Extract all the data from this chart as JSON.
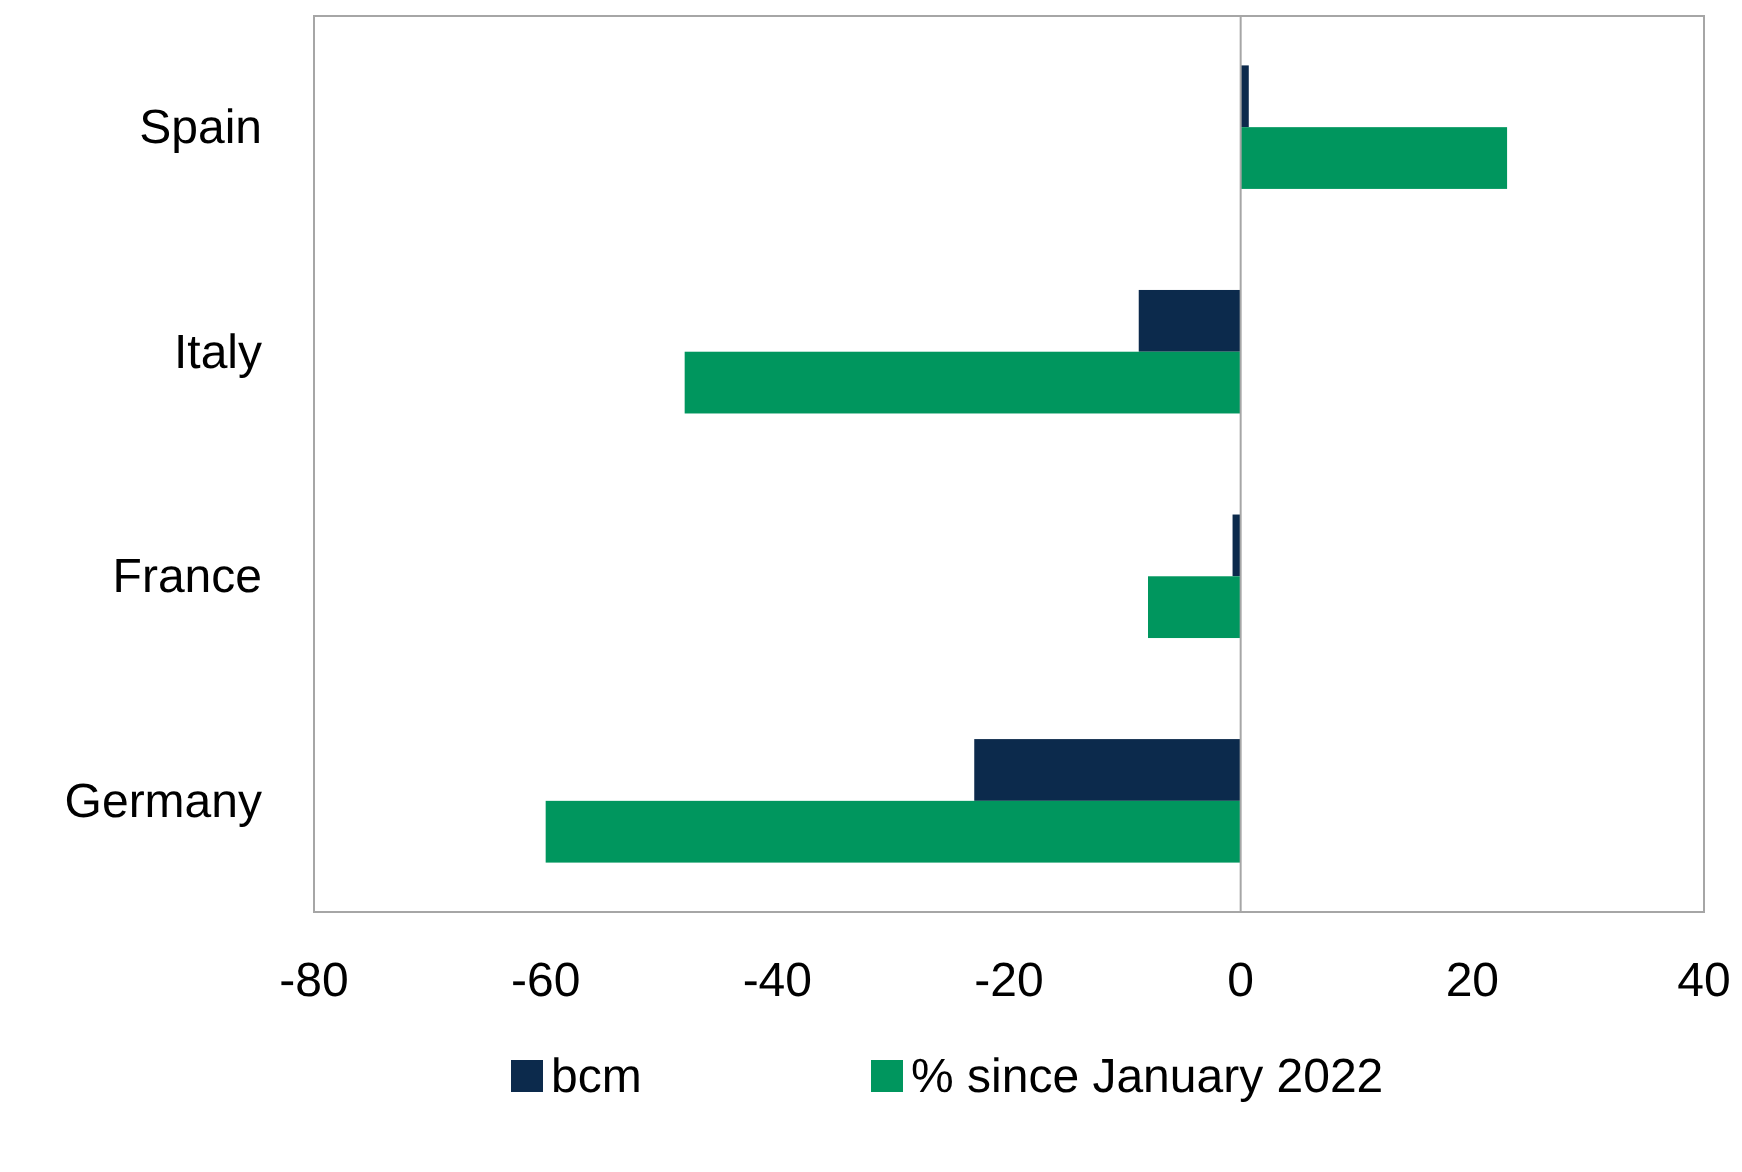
{
  "chart_data": {
    "type": "bar",
    "orientation": "horizontal",
    "categories": [
      "Spain",
      "Italy",
      "France",
      "Germany"
    ],
    "series": [
      {
        "name": "bcm",
        "color": "#0c2a4c",
        "values": [
          0.7,
          -8.8,
          -0.7,
          -23
        ]
      },
      {
        "name": "%  since January 2022",
        "color": "#00965e",
        "values": [
          23,
          -48,
          -8,
          -60
        ]
      }
    ],
    "xlim": [
      -80,
      40
    ],
    "xticks": [
      -80,
      -60,
      -40,
      -20,
      0,
      20,
      40
    ],
    "legend": "bottom"
  }
}
